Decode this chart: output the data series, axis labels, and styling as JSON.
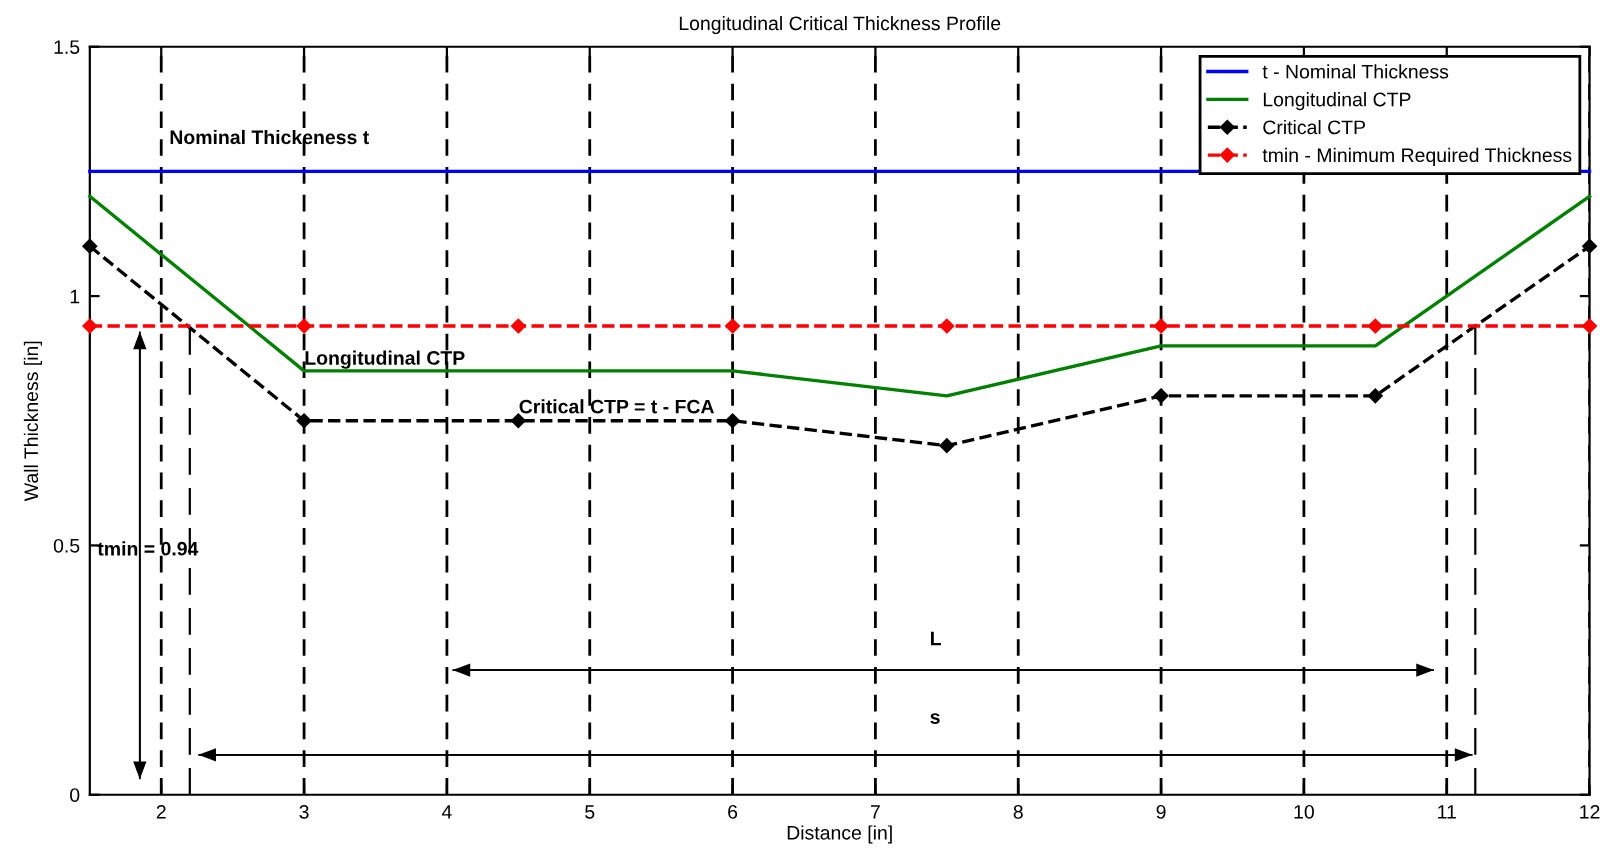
{
  "chart_data": {
    "type": "line",
    "title": "Longitudinal Critical Thickness Profile",
    "xlabel": "Distance [in]",
    "ylabel": "Wall Thickness [in]",
    "xlim": [
      1.5,
      12
    ],
    "ylim": [
      0,
      1.5
    ],
    "xticks": [
      2,
      3,
      4,
      5,
      6,
      7,
      8,
      9,
      10,
      11,
      12
    ],
    "yticks": [
      0,
      {
        "value": 0.5,
        "label": "0.5"
      },
      1,
      {
        "value": 1.5,
        "label": "1.5"
      }
    ],
    "grid": "x",
    "legend": "top right",
    "series": [
      {
        "name": "t - Nominal Thickness",
        "color": "#0000ff",
        "x": [
          1.5,
          12
        ],
        "values": [
          1.25,
          1.25
        ],
        "line_style": "solid",
        "marker": "none"
      },
      {
        "name": "Longitudinal CTP",
        "color": "#008000",
        "x": [
          1.5,
          3,
          6,
          7.5,
          9,
          10.5,
          12
        ],
        "values": [
          1.2,
          0.85,
          0.85,
          0.8,
          0.9,
          0.9,
          1.2
        ],
        "line_style": "solid",
        "marker": "none"
      },
      {
        "name": "Critical CTP",
        "color": "#000000",
        "x": [
          1.5,
          3,
          4.5,
          6,
          7.5,
          9,
          10.5,
          12
        ],
        "values": [
          1.1,
          0.75,
          0.75,
          0.75,
          0.7,
          0.8,
          0.8,
          1.1
        ],
        "line_style": "dashed",
        "marker": "diamond"
      },
      {
        "name": "tmin - Minimum Required Thickness",
        "color": "#ff0000",
        "x": [
          1.5,
          3,
          4.5,
          6,
          7.5,
          9,
          10.5,
          12
        ],
        "values": [
          0.94,
          0.94,
          0.94,
          0.94,
          0.94,
          0.94,
          0.94,
          0.94
        ],
        "line_style": "dashed",
        "marker": "diamond"
      }
    ],
    "ref_lines": [
      {
        "axis": "x",
        "value": 2.2,
        "color": "#000000",
        "line_style": "dashed"
      },
      {
        "axis": "x",
        "value": 11.2,
        "color": "#000000",
        "line_style": "dashed"
      }
    ],
    "annotations": [
      "Nominal Thickeness t",
      "Longitudinal CTP",
      "Critical CTP = t - FCA",
      "L",
      "s",
      "tmin = 0.94"
    ]
  }
}
